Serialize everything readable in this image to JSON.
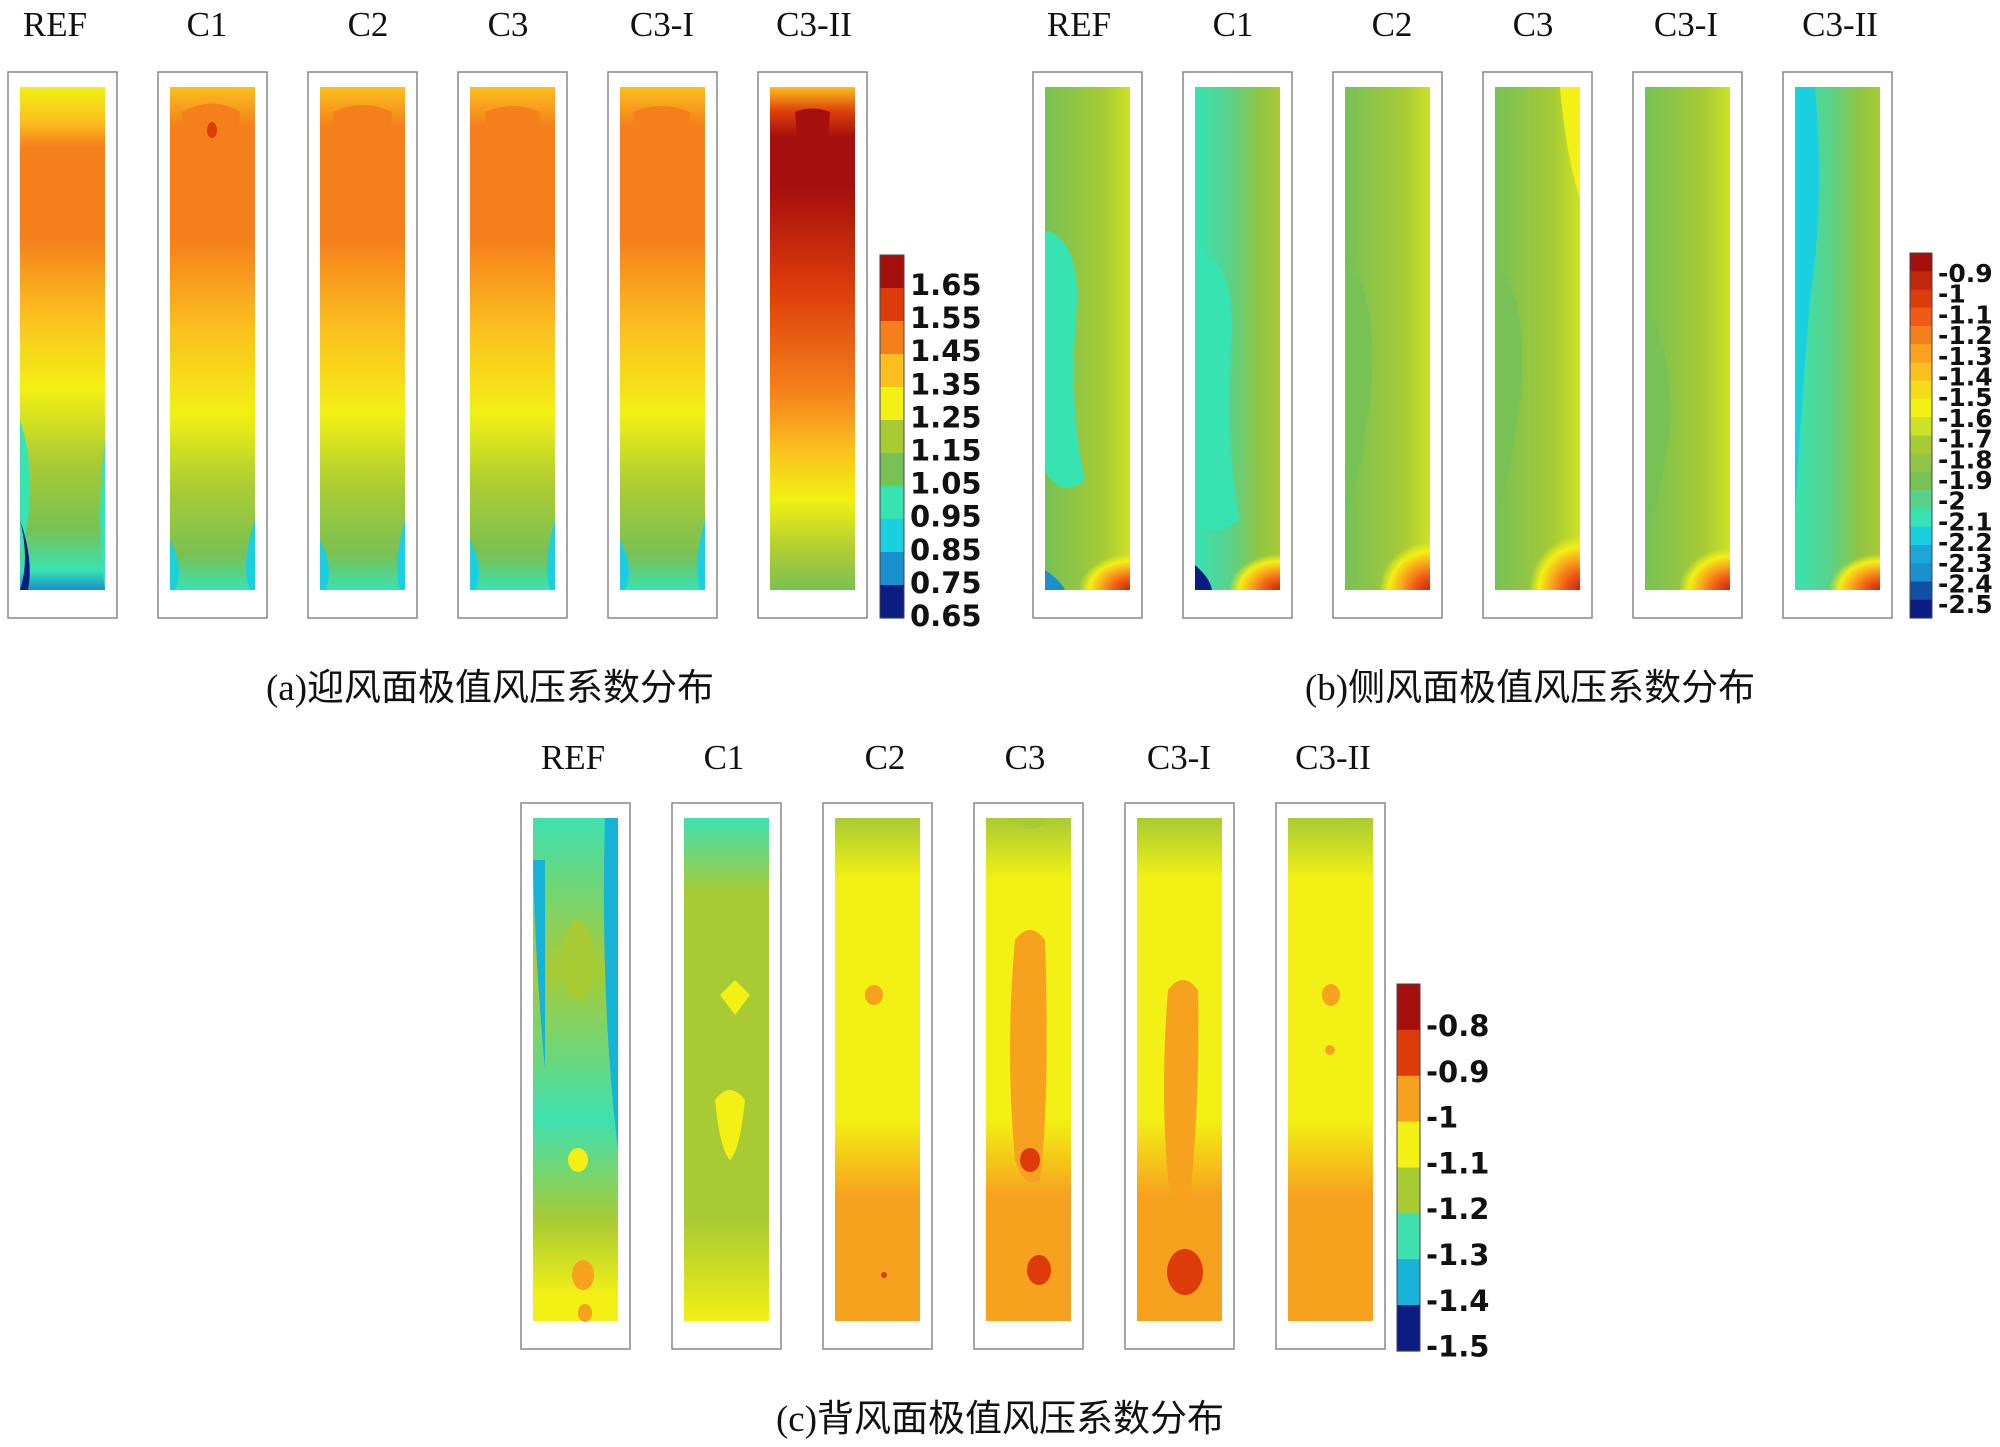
{
  "panels": [
    {
      "id": "a",
      "caption": "(a)迎风面极值风压系数分布",
      "labels": [
        "REF",
        "C1",
        "C2",
        "C3",
        "C3-I",
        "C3-II"
      ],
      "colorbar": {
        "ticks": [
          "1.65",
          "1.55",
          "1.45",
          "1.35",
          "1.25",
          "1.15",
          "1.05",
          "0.95",
          "0.85",
          "0.75",
          "0.65"
        ],
        "colors": [
          "#a50f0d",
          "#dd3c0a",
          "#f47f1b",
          "#fbbf1f",
          "#f2f014",
          "#a8cb34",
          "#78c155",
          "#38e3b2",
          "#19cfe0",
          "#1a8fcd",
          "#0b1c82"
        ]
      }
    },
    {
      "id": "b",
      "caption": "(b)侧风面极值风压系数分布",
      "labels": [
        "REF",
        "C1",
        "C2",
        "C3",
        "C3-I",
        "C3-II"
      ],
      "colorbar": {
        "ticks": [
          "-0.9",
          "-1",
          "-1.1",
          "-1.2",
          "-1.3",
          "-1.4",
          "-1.5",
          "-1.6",
          "-1.7",
          "-1.8",
          "-1.9",
          "-2",
          "-2.1",
          "-2.2",
          "-2.3",
          "-2.4",
          "-2.5"
        ],
        "colors": [
          "#a50f0d",
          "#c1270c",
          "#dd3c0a",
          "#f05a14",
          "#f47f1b",
          "#f9a21d",
          "#fbbf1f",
          "#f6db1a",
          "#f2f014",
          "#cde226",
          "#a8cb34",
          "#90c545",
          "#78c155",
          "#58d28a",
          "#38e3b2",
          "#19cfe0",
          "#1aa8d8",
          "#1a8fcd",
          "#124fa6",
          "#0b1c82"
        ]
      }
    },
    {
      "id": "c",
      "caption": "(c)背风面极值风压系数分布",
      "labels": [
        "REF",
        "C1",
        "C2",
        "C3",
        "C3-I",
        "C3-II"
      ],
      "colorbar": {
        "ticks": [
          "-0.8",
          "-0.9",
          "-1",
          "-1.1",
          "-1.2",
          "-1.3",
          "-1.4",
          "-1.5"
        ],
        "colors": [
          "#a50f0d",
          "#dd3c0a",
          "#f7a21f",
          "#f2f014",
          "#a8cb34",
          "#3fe0b0",
          "#16b3d6",
          "#0b1c82"
        ]
      }
    }
  ]
}
